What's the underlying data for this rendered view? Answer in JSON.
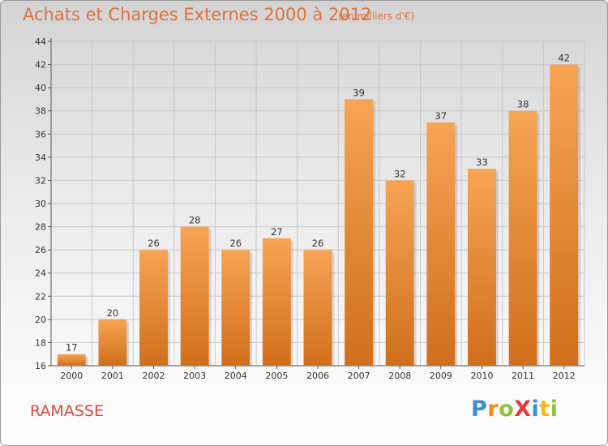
{
  "header": {
    "title": "Achats et Charges Externes 2000 à 2012",
    "unit_note": "(en milliers d'€)"
  },
  "footer": {
    "commune": "RAMASSE",
    "logo_letters": [
      {
        "ch": "P",
        "color": "#3a8fd6"
      },
      {
        "ch": "r",
        "color": "#f08a1d"
      },
      {
        "ch": "o",
        "color": "#8bc53f"
      },
      {
        "ch": "X",
        "color": "#e23c3c"
      },
      {
        "ch": "i",
        "color": "#3a8fd6"
      },
      {
        "ch": "t",
        "color": "#f0b81d"
      },
      {
        "ch": "i",
        "color": "#8bc53f"
      }
    ]
  },
  "colors": {
    "bar_light": "#f6a455",
    "bar_dark": "#d06f1c",
    "title": "#e0703a",
    "commune": "#d9493b",
    "grid": "#c8c8c8"
  },
  "chart_data": {
    "type": "bar",
    "title": "Achats et Charges Externes 2000 à 2012",
    "subtitle": "(en milliers d'€)",
    "xlabel": "",
    "ylabel": "",
    "categories": [
      "2000",
      "2001",
      "2002",
      "2003",
      "2004",
      "2005",
      "2006",
      "2007",
      "2008",
      "2009",
      "2010",
      "2011",
      "2012"
    ],
    "values": [
      17,
      20,
      26,
      28,
      26,
      27,
      26,
      39,
      32,
      37,
      33,
      38,
      42
    ],
    "ylim": [
      16,
      44
    ],
    "yticks": [
      16,
      18,
      20,
      22,
      24,
      26,
      28,
      30,
      32,
      34,
      36,
      38,
      40,
      42,
      44
    ],
    "grid": true,
    "data_labels": true
  }
}
